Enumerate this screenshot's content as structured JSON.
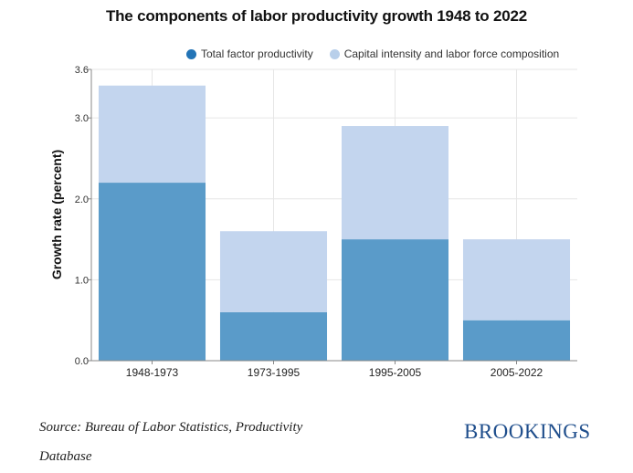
{
  "title": "The components of labor productivity growth 1948 to 2022",
  "colors": {
    "tfp": "#5a9bc9",
    "tfp_legend": "#2374b6",
    "capital": "#c3d5ee",
    "capital_legend": "#b8cfea",
    "grid": "#e6e6e6",
    "axis": "#888888",
    "brand": "#1f4e8c"
  },
  "chart_data": {
    "type": "bar",
    "stacked": true,
    "title": "The components of labor productivity growth 1948 to 2022",
    "xlabel": "",
    "ylabel": "Growth rate (percent)",
    "ylim": [
      0,
      3.6
    ],
    "yticks": [
      "0.0",
      "1.0",
      "2.0",
      "3.0",
      "3.6"
    ],
    "categories": [
      "1948-1973",
      "1973-1995",
      "1995-2005",
      "2005-2022"
    ],
    "series": [
      {
        "name": "Total factor productivity",
        "values": [
          2.2,
          0.6,
          1.5,
          0.5
        ]
      },
      {
        "name": "Capital intensity and labor force composition",
        "values": [
          1.2,
          1.0,
          1.4,
          1.0
        ]
      }
    ],
    "legend_position": "top",
    "grid": true
  },
  "source": "Source: Bureau of Labor Statistics, Productivity Database",
  "brand": "BROOKINGS"
}
